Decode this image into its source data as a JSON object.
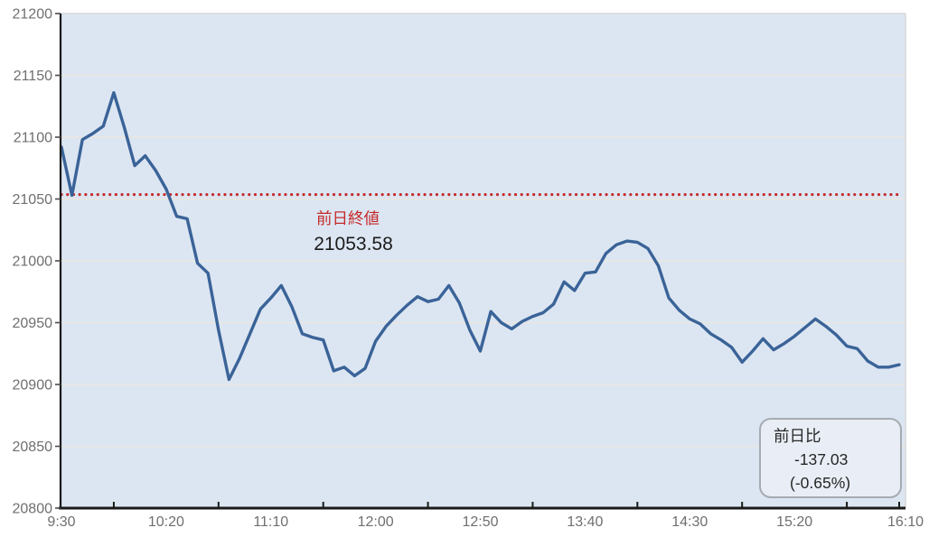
{
  "chart_data": {
    "type": "line",
    "title": "",
    "x_labels": [
      "9:30",
      "10:20",
      "11:10",
      "12:00",
      "12:50",
      "13:40",
      "14:30",
      "15:20",
      "16:10"
    ],
    "x_label_minutes": [
      0,
      50,
      100,
      150,
      200,
      250,
      300,
      350,
      400
    ],
    "x_tick_minutes": [
      25,
      75,
      125,
      175,
      225,
      275,
      325,
      375,
      400
    ],
    "total_minutes": 400,
    "start_time": "9:30",
    "interval_minutes": 5,
    "ylim": [
      20800,
      21200
    ],
    "y_ticks": [
      21200,
      21150,
      21100,
      21050,
      21000,
      20950,
      20900,
      20850,
      20800
    ],
    "values": [
      21092,
      21053,
      21098,
      21103,
      21109,
      21136,
      21108,
      21077,
      21085,
      21073,
      21058,
      21036,
      21034,
      20998,
      20990,
      20944,
      20904,
      20921,
      20941,
      20961,
      20970,
      20980,
      20963,
      20941,
      20938,
      20936,
      20911,
      20914,
      20907,
      20913,
      20935,
      20947,
      20956,
      20964,
      20971,
      20967,
      20969,
      20980,
      20966,
      20944,
      20927,
      20959,
      20950,
      20945,
      20951,
      20955,
      20958,
      20965,
      20983,
      20976,
      20990,
      20991,
      21006,
      21013,
      21016,
      21015,
      21010,
      20996,
      20970,
      20960,
      20953,
      20949,
      20941,
      20936,
      20930,
      20918,
      20927,
      20937,
      20928,
      20933,
      20939,
      20946,
      20953,
      20947,
      20940,
      20931,
      20929,
      20919,
      20914,
      20914,
      20916
    ],
    "prev_close": {
      "label": "前日終値",
      "text": "21053.58",
      "value": 21053.58
    },
    "change_box": {
      "title": "前日比",
      "change": "-137.03",
      "percent": "(-0.65%)"
    },
    "legend": null,
    "grid": true
  },
  "colors": {
    "line": "#3a6398",
    "prev_close_line": "#c52a2a",
    "plot_bg": "#dce6f2",
    "grid_line": "#eae6df",
    "border_light": "#d9d9d9",
    "axis_dark": "#1a1a1a",
    "tick_gray": "#4a4a4a",
    "axis_label": "#6f6f6f",
    "value_text": "#1c1c1c",
    "box_bg": "#e9eef6",
    "box_border": "#a6abb2"
  }
}
